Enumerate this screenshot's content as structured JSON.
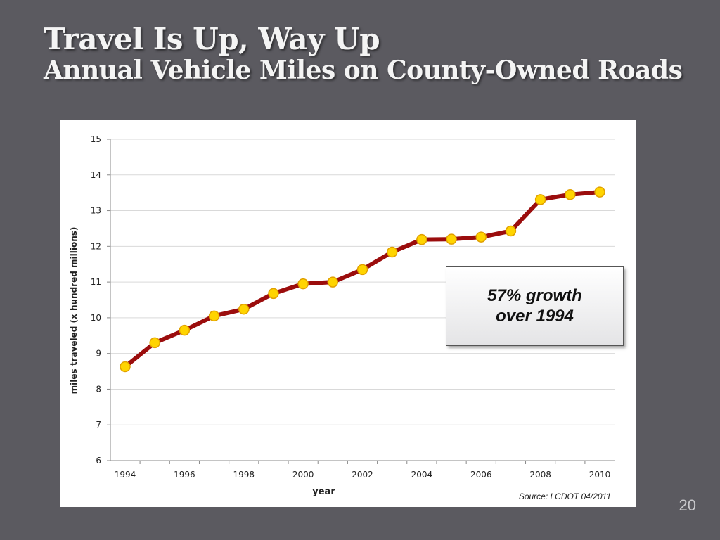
{
  "slide": {
    "title": "Travel Is Up, Way Up",
    "subtitle": "Annual Vehicle Miles on County-Owned Roads",
    "page_number": "20"
  },
  "callout": {
    "line1": "57% growth",
    "line2": "over 1994"
  },
  "source": "Source: LCDOT 04/2011",
  "colors": {
    "line": "#9b0d0d",
    "marker_fill": "#ffd400",
    "marker_stroke": "#e0a000",
    "background": "#5b5a60"
  },
  "chart_data": {
    "type": "line",
    "xlabel": "year",
    "ylabel": "miles traveled (x hundred millions)",
    "ylim": [
      6,
      15
    ],
    "xlim": [
      1994,
      2010
    ],
    "yticks": [
      6,
      7,
      8,
      9,
      10,
      11,
      12,
      13,
      14,
      15
    ],
    "xticks": [
      1994,
      1996,
      1998,
      2000,
      2002,
      2004,
      2006,
      2008,
      2010
    ],
    "grid": true,
    "legend": "none",
    "series": [
      {
        "x": [
          1994,
          1995,
          1996,
          1997,
          1998,
          1999,
          2000,
          2001,
          2002,
          2003,
          2004,
          2005,
          2006,
          2007,
          2008,
          2009,
          2010
        ],
        "values": [
          8.63,
          9.3,
          9.65,
          10.05,
          10.24,
          10.68,
          10.95,
          11.0,
          11.35,
          11.84,
          12.19,
          12.2,
          12.26,
          12.43,
          13.31,
          13.45,
          13.52
        ]
      }
    ]
  }
}
